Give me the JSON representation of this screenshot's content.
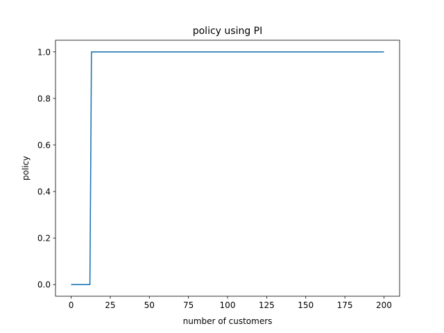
{
  "chart_data": {
    "type": "line",
    "title": "policy using PI",
    "xlabel": "number of customers",
    "ylabel": "policy",
    "xlim": [
      -10,
      210
    ],
    "ylim": [
      -0.05,
      1.05
    ],
    "xticks": [
      0,
      25,
      50,
      75,
      100,
      125,
      150,
      175,
      200
    ],
    "yticks": [
      "0.0",
      "0.2",
      "0.4",
      "0.6",
      "0.8",
      "1.0"
    ],
    "grid": false,
    "series": [
      {
        "color": "#1f77b4",
        "x": [
          0,
          12,
          13,
          200
        ],
        "y": [
          0,
          0,
          1,
          1
        ]
      }
    ]
  }
}
